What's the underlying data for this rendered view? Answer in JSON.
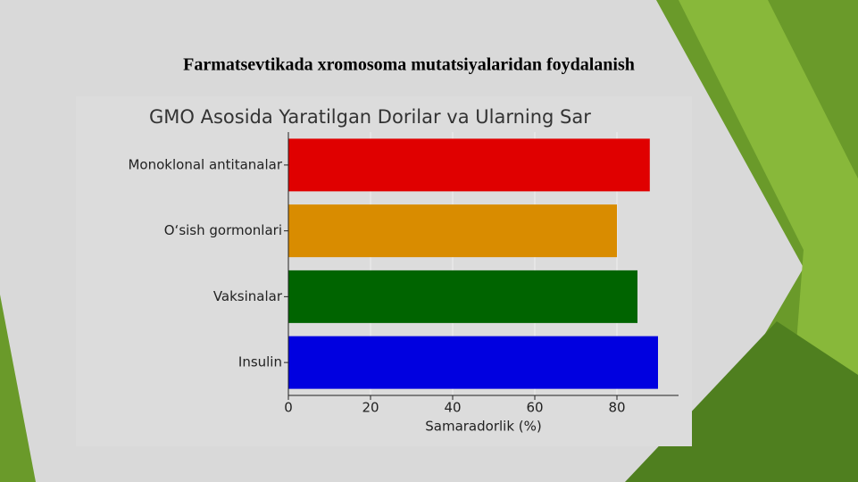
{
  "slide_title": "Farmatsevtikada xromosoma mutatsiyalaridan foydalanish",
  "chart_data": {
    "type": "barh",
    "title": "GMO Asosida Yaratilgan Dorilar va Ularning Sar",
    "categories": [
      "Monoklonal antitanalar",
      "O‘sish gormonlari",
      "Vaksinalar",
      "Insulin"
    ],
    "values": [
      88,
      80,
      85,
      90
    ],
    "colors": [
      "#e00000",
      "#d98c00",
      "#006400",
      "#0000e0"
    ],
    "x_label": "Samaradorlik (%)",
    "xlim": [
      0,
      95
    ],
    "xticks": [
      0,
      20,
      40,
      60,
      80
    ],
    "grid": true
  }
}
